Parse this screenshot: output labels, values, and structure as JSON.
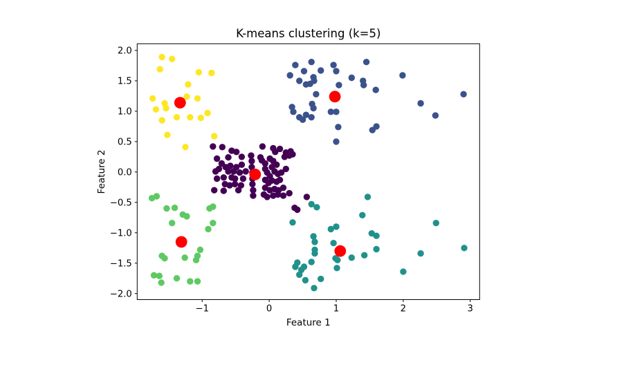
{
  "figure": {
    "background": "#ffffff",
    "frame_color": "#000000",
    "centroid_color": "#ff0000"
  },
  "chart_data": {
    "type": "scatter",
    "title": "K-means clustering (k=5)",
    "xlabel": "Feature 1",
    "ylabel": "Feature 2",
    "xlim": [
      -1.97,
      3.14
    ],
    "ylim": [
      -2.1,
      2.11
    ],
    "x_ticks": [
      -1,
      0,
      1,
      2,
      3
    ],
    "x_tick_labels": [
      "−1",
      "0",
      "1",
      "2",
      "3"
    ],
    "y_ticks": [
      -2.0,
      -1.5,
      -1.0,
      -0.5,
      0.0,
      0.5,
      1.0,
      1.5,
      2.0
    ],
    "y_tick_labels": [
      "−2.0",
      "−1.5",
      "−1.0",
      "−0.5",
      "0.0",
      "0.5",
      "1.0",
      "1.5",
      "2.0"
    ],
    "grid": false,
    "legend": null,
    "series": [
      {
        "name": "cluster-purple",
        "color": "#440154",
        "marker_radius": 4.7,
        "points": [
          [
            -0.84,
            0.42
          ],
          [
            -0.7,
            0.41
          ],
          [
            -0.56,
            0.35
          ],
          [
            -0.49,
            0.33
          ],
          [
            -0.1,
            0.42
          ],
          [
            0.06,
            0.39
          ],
          [
            0.16,
            0.38
          ],
          [
            0.09,
            0.33
          ],
          [
            0.25,
            0.32
          ],
          [
            0.32,
            0.34
          ],
          [
            -0.27,
            0.27
          ],
          [
            -0.26,
            0.18
          ],
          [
            -0.26,
            0.08
          ],
          [
            -0.25,
            -0.01
          ],
          [
            -0.25,
            -0.11
          ],
          [
            -0.25,
            -0.2
          ],
          [
            -0.24,
            -0.3
          ],
          [
            -0.24,
            -0.39
          ],
          [
            -0.78,
            0.22
          ],
          [
            -0.61,
            0.24
          ],
          [
            -0.41,
            0.25
          ],
          [
            -0.71,
            0.14
          ],
          [
            -0.65,
            0.08
          ],
          [
            -0.58,
            0.1
          ],
          [
            -0.49,
            0.08
          ],
          [
            -0.41,
            0.12
          ],
          [
            -0.13,
            0.24
          ],
          [
            -0.11,
            0.19
          ],
          [
            -0.06,
            0.14
          ],
          [
            0.01,
            0.22
          ],
          [
            0.06,
            0.18
          ],
          [
            0.04,
            0.08
          ],
          [
            0.11,
            0.12
          ],
          [
            0.23,
            0.25
          ],
          [
            0.3,
            0.27
          ],
          [
            0.35,
            0.29
          ],
          [
            -0.8,
            0.01
          ],
          [
            -0.75,
            0.05
          ],
          [
            -0.61,
            0.01
          ],
          [
            -0.53,
            0.01
          ],
          [
            -0.44,
            -0.01
          ],
          [
            -0.35,
            0.01
          ],
          [
            -0.78,
            -0.11
          ],
          [
            -0.68,
            -0.09
          ],
          [
            -0.56,
            -0.09
          ],
          [
            -0.51,
            -0.11
          ],
          [
            -0.39,
            -0.11
          ],
          [
            -0.06,
            0.05
          ],
          [
            -0.03,
            -0.01
          ],
          [
            0.01,
            -0.07
          ],
          [
            0.08,
            0.01
          ],
          [
            0.13,
            -0.03
          ],
          [
            0.18,
            -0.01
          ],
          [
            0.25,
            0.05
          ],
          [
            -0.66,
            -0.2
          ],
          [
            -0.59,
            -0.22
          ],
          [
            -0.51,
            -0.2
          ],
          [
            -0.42,
            -0.22
          ],
          [
            -0.06,
            -0.13
          ],
          [
            -0.01,
            -0.18
          ],
          [
            0.04,
            -0.14
          ],
          [
            0.11,
            -0.16
          ],
          [
            0.16,
            -0.13
          ],
          [
            -0.82,
            -0.3
          ],
          [
            -0.68,
            -0.31
          ],
          [
            -0.46,
            -0.3
          ],
          [
            -0.06,
            -0.26
          ],
          [
            0.01,
            -0.3
          ],
          [
            0.08,
            -0.28
          ],
          [
            0.14,
            -0.3
          ],
          [
            0.21,
            -0.26
          ],
          [
            -0.08,
            -0.37
          ],
          [
            -0.03,
            -0.41
          ],
          [
            0.06,
            -0.39
          ],
          [
            0.13,
            -0.37
          ],
          [
            0.21,
            -0.39
          ],
          [
            0.3,
            -0.35
          ],
          [
            0.38,
            -0.59
          ],
          [
            0.42,
            -0.62
          ],
          [
            0.56,
            -0.41
          ]
        ]
      },
      {
        "name": "cluster-blue",
        "color": "#3b528b",
        "marker_radius": 4.7,
        "points": [
          [
            0.39,
            1.76
          ],
          [
            0.63,
            1.81
          ],
          [
            0.96,
            1.76
          ],
          [
            1.45,
            1.81
          ],
          [
            0.31,
            1.59
          ],
          [
            0.52,
            1.66
          ],
          [
            0.77,
            1.67
          ],
          [
            1.0,
            1.66
          ],
          [
            0.45,
            1.5
          ],
          [
            0.66,
            1.56
          ],
          [
            0.67,
            1.5
          ],
          [
            0.55,
            1.44
          ],
          [
            0.61,
            1.45
          ],
          [
            1.23,
            1.55
          ],
          [
            1.99,
            1.59
          ],
          [
            1.04,
            1.43
          ],
          [
            1.4,
            1.5
          ],
          [
            1.41,
            1.43
          ],
          [
            1.59,
            1.35
          ],
          [
            2.9,
            1.28
          ],
          [
            0.7,
            1.28
          ],
          [
            2.26,
            1.13
          ],
          [
            0.34,
            1.07
          ],
          [
            0.36,
            0.99
          ],
          [
            0.64,
            1.12
          ],
          [
            0.66,
            1.05
          ],
          [
            0.45,
            0.9
          ],
          [
            0.5,
            0.86
          ],
          [
            0.55,
            0.94
          ],
          [
            0.63,
            0.9
          ],
          [
            0.92,
            0.99
          ],
          [
            1.0,
            0.99
          ],
          [
            2.48,
            0.93
          ],
          [
            1.03,
            0.74
          ],
          [
            1.54,
            0.69
          ],
          [
            1.6,
            0.75
          ],
          [
            1.0,
            0.5
          ]
        ]
      },
      {
        "name": "cluster-teal",
        "color": "#21918c",
        "marker_radius": 4.7,
        "points": [
          [
            1.47,
            -0.41
          ],
          [
            0.63,
            -0.53
          ],
          [
            0.71,
            -0.58
          ],
          [
            1.39,
            -0.71
          ],
          [
            0.35,
            -0.83
          ],
          [
            0.92,
            -0.94
          ],
          [
            1.0,
            -0.9
          ],
          [
            2.49,
            -0.84
          ],
          [
            1.53,
            -1.01
          ],
          [
            1.6,
            -1.05
          ],
          [
            0.66,
            -1.06
          ],
          [
            0.68,
            -1.15
          ],
          [
            0.96,
            -1.17
          ],
          [
            1.6,
            -1.27
          ],
          [
            2.91,
            -1.25
          ],
          [
            2.26,
            -1.34
          ],
          [
            0.68,
            -1.28
          ],
          [
            0.68,
            -1.34
          ],
          [
            0.99,
            -1.42
          ],
          [
            1.02,
            -1.45
          ],
          [
            1.23,
            -1.41
          ],
          [
            1.42,
            -1.37
          ],
          [
            0.42,
            -1.49
          ],
          [
            0.39,
            -1.56
          ],
          [
            0.52,
            -1.56
          ],
          [
            0.48,
            -1.61
          ],
          [
            0.63,
            -1.48
          ],
          [
            1.01,
            -1.58
          ],
          [
            2.0,
            -1.64
          ],
          [
            0.45,
            -1.69
          ],
          [
            0.54,
            -1.78
          ],
          [
            0.77,
            -1.76
          ],
          [
            0.67,
            -1.91
          ]
        ]
      },
      {
        "name": "cluster-green",
        "color": "#5ec962",
        "marker_radius": 4.7,
        "points": [
          [
            -1.75,
            -0.43
          ],
          [
            -1.68,
            -0.4
          ],
          [
            -1.53,
            -0.6
          ],
          [
            -1.41,
            -0.59
          ],
          [
            -1.29,
            -0.7
          ],
          [
            -1.23,
            -0.73
          ],
          [
            -1.45,
            -0.84
          ],
          [
            -0.89,
            -0.6
          ],
          [
            -0.84,
            -0.57
          ],
          [
            -0.84,
            -0.84
          ],
          [
            -0.91,
            -0.94
          ],
          [
            -1.03,
            -1.28
          ],
          [
            -1.6,
            -1.38
          ],
          [
            -1.56,
            -1.42
          ],
          [
            -1.26,
            -1.41
          ],
          [
            -1.07,
            -1.38
          ],
          [
            -1.09,
            -1.45
          ],
          [
            -1.72,
            -1.7
          ],
          [
            -1.64,
            -1.71
          ],
          [
            -1.61,
            -1.82
          ],
          [
            -1.38,
            -1.75
          ],
          [
            -1.18,
            -1.8
          ],
          [
            -1.07,
            -1.8
          ]
        ]
      },
      {
        "name": "cluster-yellow",
        "color": "#fde725",
        "marker_radius": 4.7,
        "points": [
          [
            -1.6,
            1.89
          ],
          [
            -1.45,
            1.86
          ],
          [
            -1.63,
            1.69
          ],
          [
            -1.05,
            1.64
          ],
          [
            -0.86,
            1.63
          ],
          [
            -1.21,
            1.44
          ],
          [
            -1.74,
            1.21
          ],
          [
            -1.23,
            1.24
          ],
          [
            -1.07,
            1.21
          ],
          [
            -1.56,
            1.13
          ],
          [
            -1.69,
            1.03
          ],
          [
            -1.54,
            1.05
          ],
          [
            -1.38,
            0.9
          ],
          [
            -1.18,
            0.9
          ],
          [
            -1.02,
            0.89
          ],
          [
            -0.92,
            0.97
          ],
          [
            -1.6,
            0.85
          ],
          [
            -1.52,
            0.61
          ],
          [
            -0.82,
            0.59
          ],
          [
            -1.25,
            0.41
          ]
        ]
      },
      {
        "name": "centroids",
        "color": "#ff0000",
        "marker_radius": 8.4,
        "points": [
          [
            -1.33,
            1.14
          ],
          [
            0.98,
            1.24
          ],
          [
            -0.21,
            -0.04
          ],
          [
            -1.31,
            -1.15
          ],
          [
            1.06,
            -1.3
          ]
        ]
      }
    ]
  }
}
